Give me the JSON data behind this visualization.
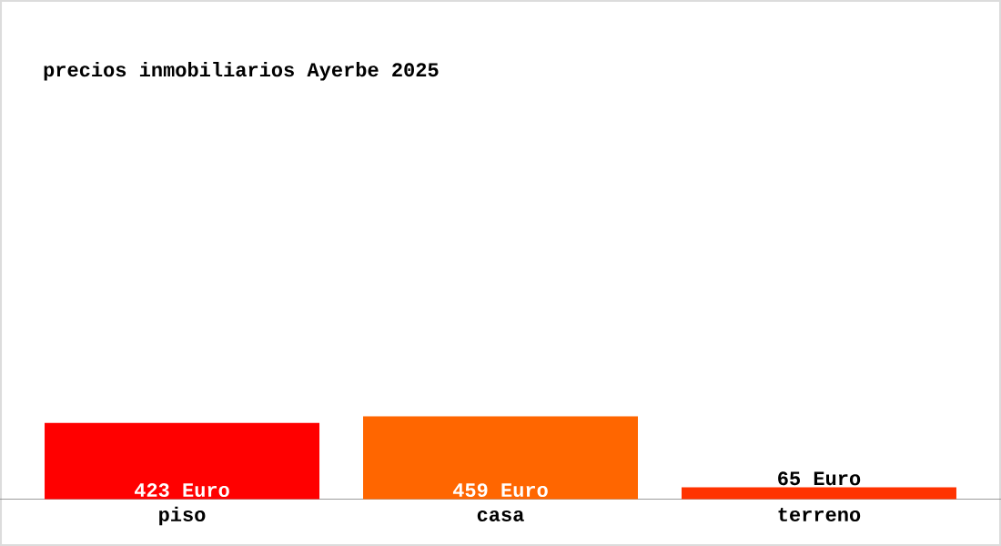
{
  "chart_data": {
    "type": "bar",
    "title": "precios inmobiliarios Ayerbe 2025",
    "categories": [
      "piso",
      "casa",
      "terreno"
    ],
    "values": [
      423,
      459,
      65
    ],
    "colors": [
      "#ff0000",
      "#ff6600",
      "#ff3300"
    ],
    "value_labels": [
      "423 Euro",
      "459 Euro",
      "65 Euro"
    ]
  }
}
